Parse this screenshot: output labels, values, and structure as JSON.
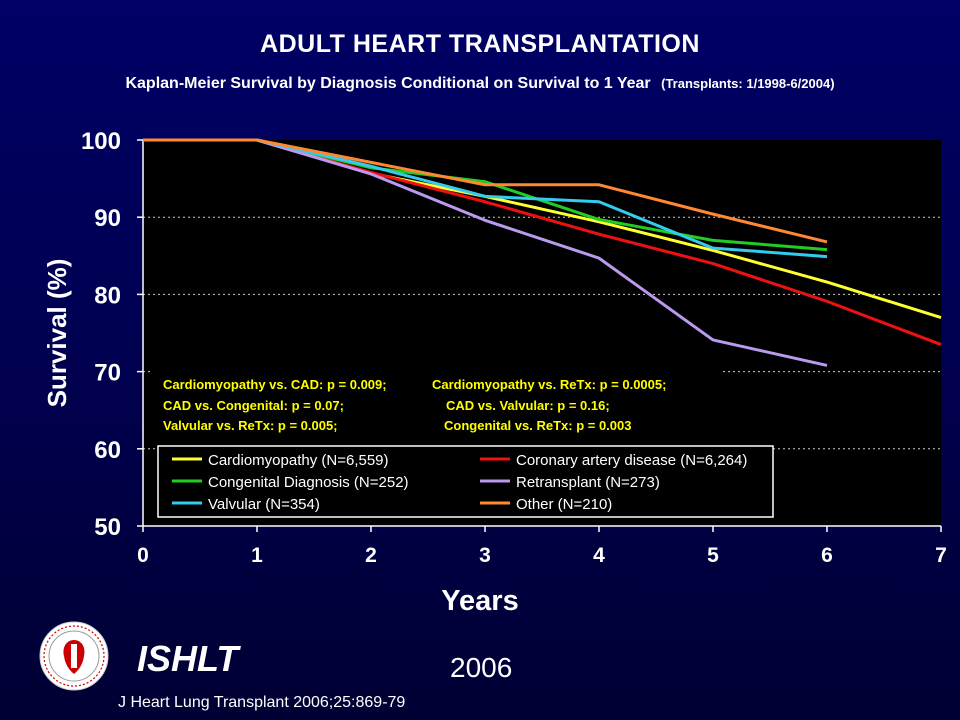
{
  "header": {
    "title": "ADULT HEART TRANSPLANTATION",
    "subtitle_main": "Kaplan-Meier Survival by Diagnosis Conditional on Survival to 1 Year",
    "subtitle_small": "(Transplants: 1/1998-6/2004)"
  },
  "footer": {
    "brand": "ISHLT",
    "year": "2006",
    "citation": "J Heart Lung Transplant 2006;25:869-79"
  },
  "logo": {
    "icon": "ishlt-seal-icon",
    "ring_text": "INTERNATIONAL SOCIETY FOR HEART & LUNG TRANSPLANTATION",
    "colors": {
      "ring": "#ffffff",
      "emblem": "#cc0000"
    }
  },
  "chart_data": {
    "type": "line",
    "xlabel": "Years",
    "ylabel": "Survival (%)",
    "xlim": [
      0,
      7
    ],
    "ylim": [
      50,
      100
    ],
    "x_ticks": [
      "0",
      "1",
      "2",
      "3",
      "4",
      "5",
      "6",
      "7"
    ],
    "y_ticks": [
      "50",
      "60",
      "70",
      "80",
      "90",
      "100"
    ],
    "grid": "horizontal dashed",
    "legend_position": "bottom-left inside plot",
    "colors": {
      "plot_background": "#000000",
      "axis": "#ffffff",
      "tick_text": "#ffffff",
      "pvalue_text": "#ffff00",
      "legend_background": "#000000",
      "legend_border": "#ffffff"
    },
    "pvalues": [
      "Cardiomyopathy vs. CAD: p = 0.009;",
      "Cardiomyopathy vs. ReTx: p = 0.0005;",
      "CAD vs. Congenital: p = 0.07;",
      "CAD vs. Valvular: p = 0.16;",
      "Valvular vs. ReTx: p = 0.005;",
      "Congenital vs. ReTx: p = 0.003"
    ],
    "series": [
      {
        "name": "Cardiomyopathy (N=6,559)",
        "color": "#ffff33",
        "x": [
          0,
          1,
          2,
          3,
          4,
          5,
          6,
          7
        ],
        "y": [
          100,
          100,
          95.7,
          92.7,
          89.4,
          85.7,
          81.6,
          77
        ]
      },
      {
        "name": "Coronary artery disease (N=6,264)",
        "color": "#ee1111",
        "x": [
          0,
          1,
          2,
          3,
          4,
          5,
          6,
          7
        ],
        "y": [
          100,
          100,
          95.8,
          92,
          87.8,
          84,
          79.1,
          73.5
        ]
      },
      {
        "name": "Congenital Diagnosis (N=252)",
        "color": "#22cc22",
        "x": [
          0,
          1,
          2,
          3,
          4,
          5,
          6
        ],
        "y": [
          100,
          100,
          96.4,
          94.6,
          89.7,
          87,
          85.8
        ]
      },
      {
        "name": "Retransplant (N=273)",
        "color": "#bb99ee",
        "x": [
          0,
          1,
          2,
          3,
          4,
          5,
          6
        ],
        "y": [
          100,
          100,
          95.6,
          89.6,
          84.7,
          74.1,
          70.8
        ]
      },
      {
        "name": "Valvular (N=354)",
        "color": "#33ccee",
        "x": [
          0,
          1,
          2,
          3,
          4,
          5,
          6
        ],
        "y": [
          100,
          100,
          96.6,
          92.7,
          92,
          86,
          84.9
        ]
      },
      {
        "name": "Other (N=210)",
        "color": "#ff8833",
        "x": [
          0,
          1,
          2,
          3,
          4,
          5,
          6
        ],
        "y": [
          100,
          100,
          97.1,
          94.2,
          94.2,
          90.4,
          86.8
        ]
      }
    ]
  }
}
